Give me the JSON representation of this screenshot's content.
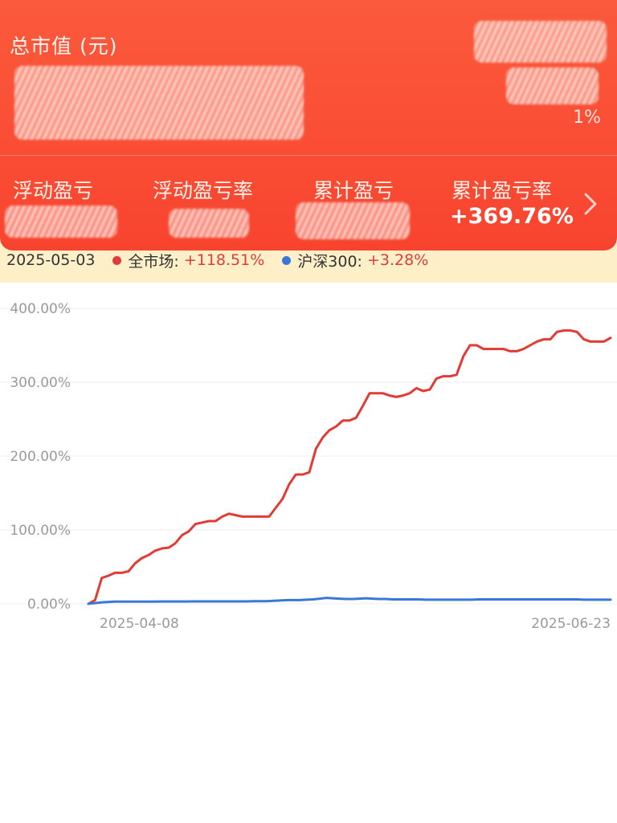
{
  "header": {
    "total_value_label": "总市值 (元)",
    "today_pct_partial": "1%"
  },
  "stats": [
    {
      "label": "浮动盈亏"
    },
    {
      "label": "浮动盈亏率"
    },
    {
      "label": "累计盈亏"
    },
    {
      "label": "累计盈亏率",
      "value": "+369.76%"
    }
  ],
  "legend": {
    "date": "2025-05-03",
    "market_name": "全市场:",
    "market_value": "+118.51%",
    "market_color": "#e23b35",
    "csi_name": "沪深300:",
    "csi_value": "+3.28%",
    "csi_color": "#3a78d8"
  },
  "chart_data": {
    "type": "line",
    "title": "",
    "xlabel": "",
    "ylabel": "",
    "y_tick_labels": [
      "400.00%",
      "300.00%",
      "200.00%",
      "100.00%",
      "0.00%"
    ],
    "x_tick_labels": [
      "2025-04-08",
      "2025-06-23"
    ],
    "ylim": [
      0,
      400
    ],
    "grid": true,
    "series": [
      {
        "name": "全市场",
        "color": "#e23b35",
        "values": [
          0,
          5,
          35,
          38,
          42,
          42,
          44,
          55,
          62,
          66,
          72,
          75,
          76,
          82,
          93,
          98,
          108,
          110,
          112,
          112,
          118,
          122,
          120,
          118,
          118,
          118,
          118,
          118,
          130,
          142,
          162,
          175,
          175,
          178,
          210,
          225,
          235,
          240,
          248,
          248,
          252,
          268,
          285,
          285,
          285,
          282,
          280,
          282,
          285,
          292,
          288,
          290,
          305,
          308,
          308,
          310,
          335,
          350,
          350,
          345,
          345,
          345,
          345,
          342,
          342,
          345,
          350,
          355,
          358,
          358,
          368,
          370,
          370,
          368,
          358,
          355,
          355,
          355,
          360
        ]
      },
      {
        "name": "沪深300",
        "color": "#3a78d8",
        "values": [
          0,
          1,
          2,
          2.5,
          3,
          3,
          3,
          3,
          3,
          3,
          3,
          3.2,
          3.2,
          3.2,
          3.2,
          3.2,
          3.3,
          3.3,
          3.3,
          3.3,
          3.3,
          3.3,
          3.3,
          3.3,
          3.3,
          3.5,
          3.5,
          3.5,
          4,
          4.5,
          5,
          5,
          5,
          5.5,
          6,
          7,
          8,
          7.5,
          7,
          6.5,
          6.5,
          7,
          7.5,
          7,
          6.5,
          6.5,
          6,
          6,
          6,
          6,
          6,
          5.5,
          5.5,
          5.5,
          5.5,
          5.5,
          5.5,
          5.5,
          5.5,
          6,
          6,
          6,
          6,
          6,
          6,
          6,
          6,
          6,
          6,
          6,
          6,
          6,
          6,
          6,
          6,
          5.5,
          5.5,
          5.5,
          5.5,
          5.5
        ]
      }
    ]
  }
}
